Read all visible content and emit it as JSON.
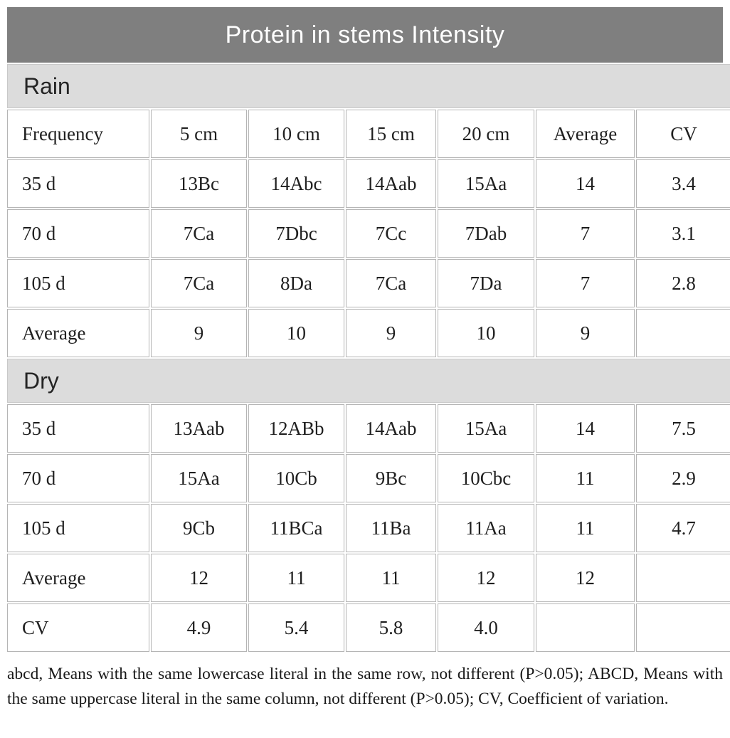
{
  "title": "Protein in stems Intensity",
  "columns": [
    "Frequency",
    "5 cm",
    "10 cm",
    "15 cm",
    "20 cm",
    "Average",
    "CV"
  ],
  "sections": [
    {
      "label": "Rain",
      "rows": [
        [
          "35 d",
          "13Bc",
          "14Abc",
          "14Aab",
          "15Aa",
          "14",
          "3.4"
        ],
        [
          "70 d",
          "7Ca",
          "7Dbc",
          "7Cc",
          "7Dab",
          "7",
          "3.1"
        ],
        [
          "105 d",
          "7Ca",
          "8Da",
          "7Ca",
          "7Da",
          "7",
          "2.8"
        ],
        [
          "Average",
          "9",
          "10",
          "9",
          "10",
          "9",
          ""
        ]
      ]
    },
    {
      "label": "Dry",
      "rows": [
        [
          "35 d",
          "13Aab",
          "12ABb",
          "14Aab",
          "15Aa",
          "14",
          "7.5"
        ],
        [
          "70 d",
          "15Aa",
          "10Cb",
          "9Bc",
          "10Cbc",
          "11",
          "2.9"
        ],
        [
          "105 d",
          "9Cb",
          "11BCa",
          "11Ba",
          "11Aa",
          "11",
          "4.7"
        ],
        [
          "Average",
          "12",
          "11",
          "11",
          "12",
          "12",
          ""
        ],
        [
          "CV",
          "4.9",
          "5.4",
          "5.8",
          "4.0",
          "",
          ""
        ]
      ]
    }
  ],
  "footnote": "abcd, Means with the same lowercase literal in the same row, not different (P>0.05); ABCD, Means with the same uppercase literal in the same column, not different (P>0.05); CV, Coefficient of variation.",
  "colors": {
    "title_bar": "#7f7f7f",
    "title_text": "#ffffff",
    "section_band": "#dcdcdc",
    "border": "#b5b5b5",
    "cell_background": "#ffffff",
    "body_text": "#1f1f1f"
  }
}
